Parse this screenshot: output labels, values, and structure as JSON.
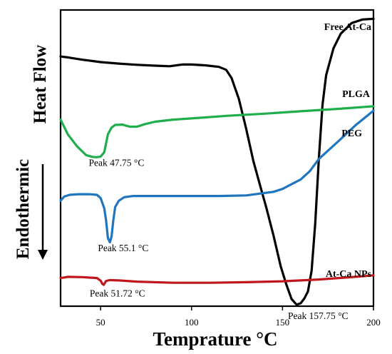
{
  "chart_data": {
    "type": "line",
    "xlabel": "Temprature °C",
    "ylabel_top": "Heat Flow",
    "ylabel_bottom": "Endothermic",
    "xlim": [
      28,
      200
    ],
    "ylim": [
      0,
      100
    ],
    "x_ticks": [
      50,
      100,
      150,
      200
    ],
    "grid": false,
    "legend": "labels-next-to-curves",
    "series": [
      {
        "name": "Free At-Ca",
        "color": "#000000",
        "points": [
          [
            28,
            84.3
          ],
          [
            32,
            84.0
          ],
          [
            40,
            83.2
          ],
          [
            50,
            82.4
          ],
          [
            60,
            81.9
          ],
          [
            70,
            81.5
          ],
          [
            80,
            81.2
          ],
          [
            88,
            81.0
          ],
          [
            95,
            81.6
          ],
          [
            100,
            81.6
          ],
          [
            108,
            81.3
          ],
          [
            115,
            80.8
          ],
          [
            119,
            79.8
          ],
          [
            122,
            77.0
          ],
          [
            126,
            70.0
          ],
          [
            130,
            60.0
          ],
          [
            134,
            49.0
          ],
          [
            138,
            40.0
          ],
          [
            141,
            33.5
          ],
          [
            145,
            24.0
          ],
          [
            149,
            13.5
          ],
          [
            152,
            7.5
          ],
          [
            155,
            2.4
          ],
          [
            157.75,
            0.5
          ],
          [
            160,
            1.0
          ],
          [
            162,
            2.6
          ],
          [
            164,
            5.0
          ],
          [
            166,
            12.0
          ],
          [
            168,
            28.0
          ],
          [
            170,
            50.0
          ],
          [
            172,
            68.0
          ],
          [
            174,
            78.0
          ],
          [
            178,
            87.0
          ],
          [
            182,
            92.0
          ],
          [
            188,
            95.6
          ],
          [
            194,
            96.8
          ],
          [
            200,
            97.0
          ]
        ]
      },
      {
        "name": "PLGA",
        "color": "#1fae4c",
        "points": [
          [
            28,
            63.0
          ],
          [
            32,
            58.0
          ],
          [
            37,
            54.0
          ],
          [
            42,
            51.0
          ],
          [
            45.5,
            50.4
          ],
          [
            47.75,
            50.3
          ],
          [
            50,
            50.5
          ],
          [
            52,
            52.0
          ],
          [
            54,
            58.0
          ],
          [
            56,
            60.3
          ],
          [
            58,
            61.2
          ],
          [
            62,
            61.3
          ],
          [
            66,
            60.6
          ],
          [
            70,
            60.6
          ],
          [
            74,
            61.4
          ],
          [
            80,
            62.3
          ],
          [
            90,
            63.0
          ],
          [
            100,
            63.4
          ],
          [
            120,
            64.3
          ],
          [
            140,
            65.0
          ],
          [
            160,
            65.8
          ],
          [
            180,
            66.6
          ],
          [
            200,
            67.5
          ]
        ]
      },
      {
        "name": "PEG",
        "color": "#1f75bf",
        "points": [
          [
            28,
            35.6
          ],
          [
            30,
            37.0
          ],
          [
            33,
            37.6
          ],
          [
            38,
            37.8
          ],
          [
            44,
            37.8
          ],
          [
            48,
            37.6
          ],
          [
            50,
            36.5
          ],
          [
            52,
            33.0
          ],
          [
            53,
            29.0
          ],
          [
            54,
            23.0
          ],
          [
            55.1,
            21.6
          ],
          [
            56,
            23.5
          ],
          [
            57,
            29.0
          ],
          [
            58,
            33.5
          ],
          [
            60,
            35.6
          ],
          [
            63,
            36.8
          ],
          [
            68,
            37.2
          ],
          [
            80,
            37.2
          ],
          [
            100,
            37.2
          ],
          [
            115,
            37.2
          ],
          [
            130,
            37.4
          ],
          [
            145,
            38.6
          ],
          [
            150,
            39.6
          ],
          [
            160,
            42.8
          ],
          [
            165,
            45.6
          ],
          [
            170,
            49.7
          ],
          [
            180,
            55.3
          ],
          [
            190,
            61.0
          ],
          [
            200,
            66.0
          ]
        ]
      },
      {
        "name": "At-Ca NPs",
        "color": "#c0171c",
        "points": [
          [
            28,
            9.5
          ],
          [
            32,
            9.9
          ],
          [
            40,
            9.8
          ],
          [
            48,
            9.5
          ],
          [
            50,
            8.6
          ],
          [
            51,
            7.5
          ],
          [
            51.72,
            7.2
          ],
          [
            53,
            8.5
          ],
          [
            55,
            8.8
          ],
          [
            60,
            8.7
          ],
          [
            70,
            8.3
          ],
          [
            90,
            7.9
          ],
          [
            110,
            7.9
          ],
          [
            130,
            8.1
          ],
          [
            150,
            8.4
          ],
          [
            170,
            9.0
          ],
          [
            190,
            9.9
          ],
          [
            200,
            10.4
          ]
        ]
      }
    ],
    "annotations": [
      {
        "text": "Peak  47.75 °C",
        "x": 43.5,
        "y": 47.4
      },
      {
        "text": "Peak  55.1 °C",
        "x": 48.5,
        "y": 18.6
      },
      {
        "text": "Peak  51.72 °C",
        "x": 44.0,
        "y": 3.3
      },
      {
        "text": "Peak  157.75 °C",
        "x": 153.0,
        "y": -4.3
      }
    ]
  }
}
